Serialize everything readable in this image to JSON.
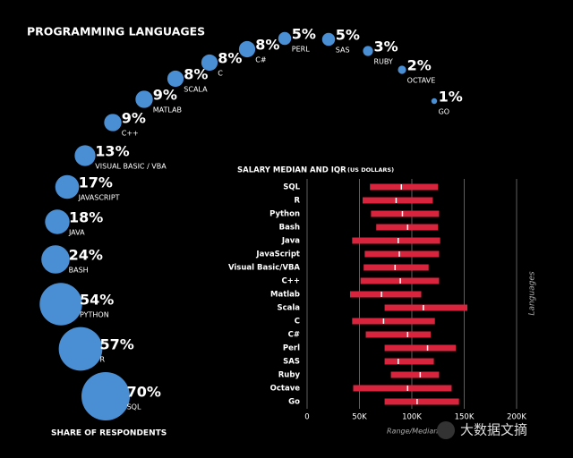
{
  "chart_data": [
    {
      "type": "bubble",
      "title": "PROGRAMMING LANGUAGES",
      "footer": "SHARE OF RESPONDENTS",
      "color": "#4a8fd3",
      "categories": [
        "SQL",
        "R",
        "PYTHON",
        "BASH",
        "JAVA",
        "JAVASCRIPT",
        "VISUAL BASIC / VBA",
        "C++",
        "MATLAB",
        "SCALA",
        "C",
        "C#",
        "PERL",
        "SAS",
        "RUBY",
        "OCTAVE",
        "GO"
      ],
      "values": [
        70,
        57,
        54,
        24,
        18,
        17,
        13,
        9,
        9,
        8,
        8,
        8,
        5,
        5,
        3,
        2,
        1
      ],
      "value_labels": [
        "70%",
        "57%",
        "54%",
        "24%",
        "18%",
        "17%",
        "13%",
        "9%",
        "9%",
        "8%",
        "8%",
        "8%",
        "5%",
        "5%",
        "3%",
        "2%",
        "1%"
      ]
    },
    {
      "type": "range",
      "title": "SALARY MEDIAN AND IQR",
      "subtitle": "(US DOLLARS)",
      "ylabel": "Languages",
      "xlabel": "Range/Median",
      "color": "#d8243c",
      "categories": [
        "SQL",
        "R",
        "Python",
        "Bash",
        "Java",
        "JavaScript",
        "Visual Basic/VBA",
        "C++",
        "Matlab",
        "Scala",
        "C",
        "C#",
        "Perl",
        "SAS",
        "Ruby",
        "Octave",
        "Go"
      ],
      "low": [
        60000,
        53000,
        61000,
        66000,
        43000,
        55000,
        54000,
        51000,
        41000,
        74000,
        43000,
        56000,
        74000,
        74000,
        80000,
        44000,
        74000
      ],
      "median": [
        90000,
        85000,
        91000,
        96000,
        87000,
        88000,
        84000,
        89000,
        71000,
        111000,
        73000,
        96000,
        115000,
        87000,
        108000,
        96000,
        105000
      ],
      "high": [
        125000,
        120000,
        126000,
        125000,
        127000,
        126000,
        116000,
        126000,
        109000,
        153000,
        122000,
        118000,
        142000,
        121000,
        126000,
        138000,
        145000
      ],
      "xlim": [
        0,
        200000
      ],
      "xticks": [
        0,
        {
          "value": 50000,
          "label": "50K"
        },
        {
          "value": 100000,
          "label": "100K"
        },
        {
          "value": 150000,
          "label": "150K"
        },
        {
          "value": 200000,
          "label": "200K"
        }
      ],
      "grid": true
    }
  ],
  "watermark": "大数据文摘"
}
